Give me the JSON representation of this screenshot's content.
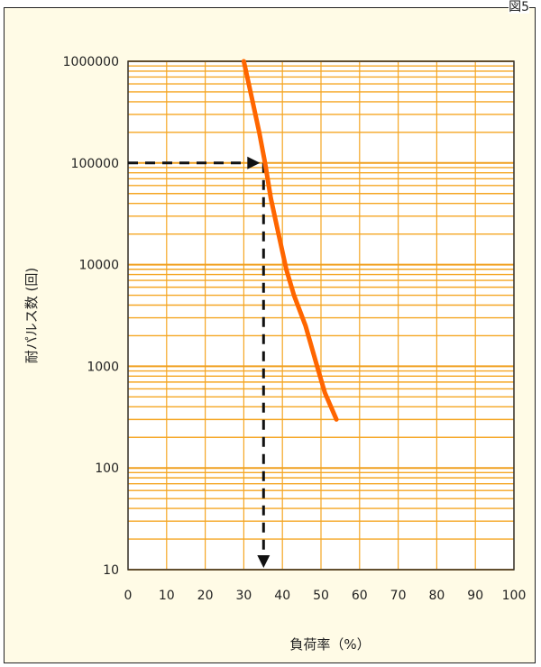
{
  "figure_label": "図5",
  "chart_data": {
    "type": "line",
    "xlabel": "負荷率（%）",
    "ylabel": "耐パルス数 (回)",
    "xlim": [
      0,
      100
    ],
    "ylim": [
      10,
      1000000
    ],
    "yscale": "log",
    "grid": true,
    "x_ticks": [
      "0",
      "10",
      "20",
      "30",
      "40",
      "50",
      "60",
      "70",
      "80",
      "90",
      "100"
    ],
    "y_ticks": [
      "10",
      "100",
      "1000",
      "10000",
      "100000",
      "1000000"
    ],
    "series": [
      {
        "color": "#ff6600",
        "points": [
          [
            30,
            1000000
          ],
          [
            32,
            450000
          ],
          [
            34,
            200000
          ],
          [
            35.5,
            100000
          ],
          [
            37,
            45000
          ],
          [
            39,
            20000
          ],
          [
            41,
            9000
          ],
          [
            43,
            5000
          ],
          [
            46,
            2500
          ],
          [
            49,
            1000
          ],
          [
            51,
            550
          ],
          [
            54,
            300
          ]
        ]
      }
    ],
    "annotation": {
      "x": 35,
      "y": 100000,
      "color": "#111111"
    },
    "colors": {
      "grid": "#f5a623",
      "panel": "#ffffff",
      "background": "#fffbe6"
    }
  }
}
